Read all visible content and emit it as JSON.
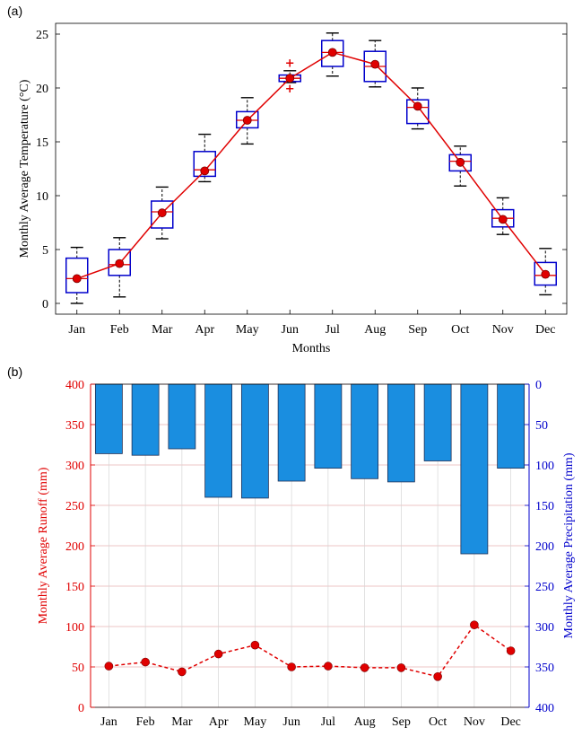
{
  "panel_a_label": "(a)",
  "panel_b_label": "(b)",
  "chart_data": [
    {
      "type": "box",
      "panel": "(a)",
      "xlabel": "Months",
      "ylabel": "Monthly Average Temperature (°C)",
      "ylim": [
        -1,
        26
      ],
      "yticks": [
        0,
        5,
        10,
        15,
        20,
        25
      ],
      "categories": [
        "Jan",
        "Feb",
        "Mar",
        "Apr",
        "May",
        "Jun",
        "Jul",
        "Aug",
        "Sep",
        "Oct",
        "Nov",
        "Dec"
      ],
      "means": [
        2.3,
        3.7,
        8.4,
        12.3,
        17.0,
        20.9,
        23.3,
        22.2,
        18.3,
        13.1,
        7.8,
        2.7
      ],
      "boxes": [
        {
          "whisker_low": 0.0,
          "q1": 1.0,
          "median": 2.3,
          "q3": 4.2,
          "whisker_high": 5.2
        },
        {
          "whisker_low": 0.6,
          "q1": 2.6,
          "median": 3.6,
          "q3": 5.0,
          "whisker_high": 6.1
        },
        {
          "whisker_low": 6.0,
          "q1": 7.0,
          "median": 8.5,
          "q3": 9.5,
          "whisker_high": 10.8
        },
        {
          "whisker_low": 11.3,
          "q1": 11.8,
          "median": 12.4,
          "q3": 14.1,
          "whisker_high": 15.7
        },
        {
          "whisker_low": 14.8,
          "q1": 16.3,
          "median": 17.0,
          "q3": 17.8,
          "whisker_high": 19.1
        },
        {
          "whisker_low": 20.5,
          "q1": 20.6,
          "median": 20.9,
          "q3": 21.2,
          "whisker_high": 21.6
        },
        {
          "whisker_low": 21.1,
          "q1": 22.0,
          "median": 23.3,
          "q3": 24.4,
          "whisker_high": 25.1
        },
        {
          "whisker_low": 20.1,
          "q1": 20.6,
          "median": 22.0,
          "q3": 23.4,
          "whisker_high": 24.4
        },
        {
          "whisker_low": 16.2,
          "q1": 16.7,
          "median": 18.2,
          "q3": 18.9,
          "whisker_high": 20.0
        },
        {
          "whisker_low": 10.9,
          "q1": 12.3,
          "median": 13.2,
          "q3": 13.8,
          "whisker_high": 14.6
        },
        {
          "whisker_low": 6.4,
          "q1": 7.1,
          "median": 7.9,
          "q3": 8.7,
          "whisker_high": 9.8
        },
        {
          "whisker_low": 0.8,
          "q1": 1.7,
          "median": 2.6,
          "q3": 3.8,
          "whisker_high": 5.1
        }
      ],
      "outliers": [
        {
          "month": "Jun",
          "value": 22.3
        },
        {
          "month": "Jun",
          "value": 19.9
        }
      ],
      "colors": {
        "box": "#0000cc",
        "mean_line": "#e00000",
        "mean_marker": "#e00000",
        "outlier": "#e00000",
        "median": "#e00000"
      }
    },
    {
      "type": "bar+line",
      "panel": "(b)",
      "categories": [
        "Jan",
        "Feb",
        "Mar",
        "Apr",
        "May",
        "Jun",
        "Jul",
        "Aug",
        "Sep",
        "Oct",
        "Nov",
        "Dec"
      ],
      "left_axis": {
        "label": "Monthly Average Runoff (mm)",
        "ylim": [
          0,
          400
        ],
        "ticks": [
          0,
          50,
          100,
          150,
          200,
          250,
          300,
          350,
          400
        ],
        "color": "#e00000"
      },
      "right_axis": {
        "label": "Monthly Average Precipitation (mm)",
        "ylim": [
          0,
          400
        ],
        "reversed": true,
        "ticks": [
          0,
          50,
          100,
          150,
          200,
          250,
          300,
          350,
          400
        ],
        "color": "#0000cc"
      },
      "runoff": [
        51,
        56,
        44,
        66,
        77,
        50,
        51,
        49,
        49,
        38,
        102,
        70
      ],
      "precipitation": [
        86,
        88,
        80,
        140,
        141,
        120,
        104,
        117,
        121,
        95,
        210,
        104
      ],
      "grid": true,
      "colors": {
        "bars": "#1a8ee0",
        "bar_edge": "#1f2f55",
        "runoff": "#e00000",
        "grid": "#e8b0b0"
      }
    }
  ]
}
